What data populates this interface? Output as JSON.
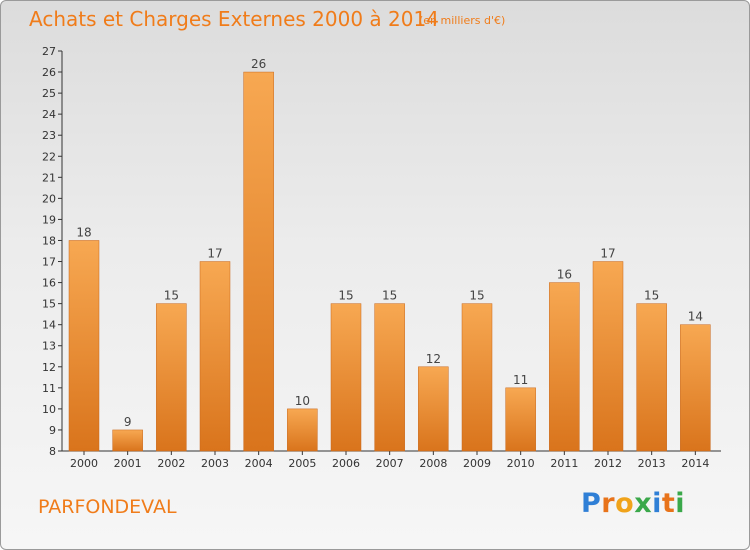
{
  "header": {
    "title": "Achats et Charges Externes 2000 à 2014",
    "unit": "(en milliers d'€)"
  },
  "footer": {
    "place": "PARFONDEVAL",
    "logo": "Proxiti"
  },
  "colors": {
    "accent": "#f07c1a",
    "bar_light": "#f7a852",
    "bar_dark": "#d9741c",
    "axis": "#333333"
  },
  "chart_data": {
    "type": "bar",
    "title": "Achats et Charges Externes 2000 à 2014",
    "subtitle": "(en milliers d'€)",
    "xlabel": "",
    "ylabel": "",
    "categories": [
      "2000",
      "2001",
      "2002",
      "2003",
      "2004",
      "2005",
      "2006",
      "2007",
      "2008",
      "2009",
      "2010",
      "2011",
      "2012",
      "2013",
      "2014"
    ],
    "values": [
      18,
      9,
      15,
      17,
      26,
      10,
      15,
      15,
      12,
      15,
      11,
      16,
      17,
      15,
      14
    ],
    "ylim": [
      8,
      27
    ],
    "yticks": [
      8,
      9,
      10,
      11,
      12,
      13,
      14,
      15,
      16,
      17,
      18,
      19,
      20,
      21,
      22,
      23,
      24,
      25,
      26,
      27
    ],
    "grid": false,
    "legend": "none"
  }
}
